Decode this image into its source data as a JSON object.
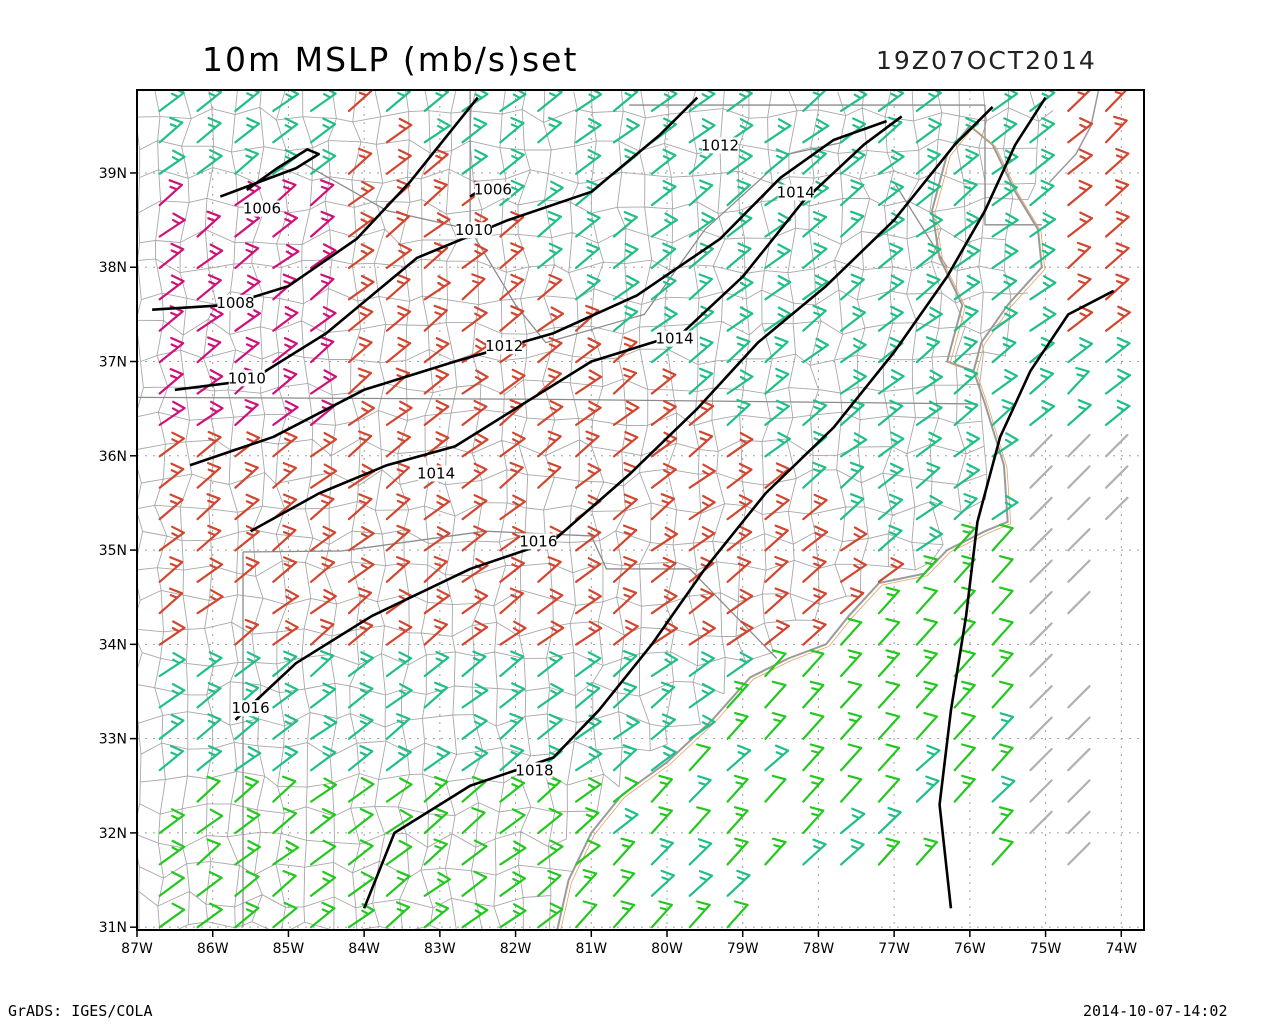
{
  "header": {
    "title": "10m MSLP (mb/s)set",
    "valid_time": "19Z07OCT2014"
  },
  "footer": {
    "credit": "GrADS: IGES/COLA",
    "timestamp": "2014-10-07-14:02"
  },
  "map": {
    "lon_range": [
      -87,
      -73.7
    ],
    "lat_range": [
      30.97,
      39.88
    ],
    "lon_ticks": [
      {
        "value": -87,
        "label": "87W"
      },
      {
        "value": -86,
        "label": "86W"
      },
      {
        "value": -85,
        "label": "85W"
      },
      {
        "value": -84,
        "label": "84W"
      },
      {
        "value": -83,
        "label": "83W"
      },
      {
        "value": -82,
        "label": "82W"
      },
      {
        "value": -81,
        "label": "81W"
      },
      {
        "value": -80,
        "label": "80W"
      },
      {
        "value": -79,
        "label": "79W"
      },
      {
        "value": -78,
        "label": "78W"
      },
      {
        "value": -77,
        "label": "77W"
      },
      {
        "value": -76,
        "label": "76W"
      },
      {
        "value": -75,
        "label": "75W"
      },
      {
        "value": -74,
        "label": "74W"
      }
    ],
    "lat_ticks": [
      {
        "value": 31,
        "label": "31N"
      },
      {
        "value": 32,
        "label": "32N"
      },
      {
        "value": 33,
        "label": "33N"
      },
      {
        "value": 34,
        "label": "34N"
      },
      {
        "value": 35,
        "label": "35N"
      },
      {
        "value": 36,
        "label": "36N"
      },
      {
        "value": 37,
        "label": "37N"
      },
      {
        "value": 38,
        "label": "38N"
      },
      {
        "value": 39,
        "label": "39N"
      }
    ],
    "colors": {
      "frame": "#000000",
      "grid": "#a0a0a0",
      "counties": "#a8a8a8",
      "isobar": "#000000",
      "wind_magenta": "#d0107a",
      "wind_red": "#d2452e",
      "wind_teal": "#1fbf86",
      "wind_green": "#22c81e",
      "wind_gray": "#b0b0b0"
    },
    "isobars": [
      {
        "label": "1006",
        "label_at": [
          -85.35,
          38.58
        ],
        "points": [
          [
            -85.9,
            38.75
          ],
          [
            -85.4,
            38.9
          ],
          [
            -84.9,
            39.05
          ],
          [
            -84.6,
            39.2
          ],
          [
            -84.75,
            39.25
          ],
          [
            -85.15,
            39.05
          ],
          [
            -85.55,
            38.82
          ]
        ]
      },
      {
        "label": "1006",
        "label_at": [
          -82.3,
          38.78
        ],
        "points": [
          [
            -82.6,
            38.75
          ],
          [
            -82.3,
            38.9
          ]
        ]
      },
      {
        "label": "1008",
        "label_at": [
          -85.7,
          37.58
        ],
        "points": [
          [
            -86.8,
            37.55
          ],
          [
            -85.8,
            37.6
          ],
          [
            -85.0,
            37.8
          ],
          [
            -84.1,
            38.3
          ],
          [
            -83.4,
            38.9
          ],
          [
            -82.8,
            39.5
          ],
          [
            -82.5,
            39.8
          ]
        ]
      },
      {
        "label": "1010",
        "label_at": [
          -82.55,
          38.35
        ],
        "points": [
          [
            -86.5,
            36.7
          ],
          [
            -85.5,
            36.8
          ],
          [
            -84.5,
            37.3
          ],
          [
            -83.3,
            38.1
          ],
          [
            -82.1,
            38.5
          ],
          [
            -81.0,
            38.8
          ],
          [
            -80.1,
            39.4
          ],
          [
            -79.6,
            39.8
          ]
        ]
      },
      {
        "label": "1010",
        "label_at": [
          -85.55,
          36.78
        ],
        "points": []
      },
      {
        "label": "1012",
        "label_at": [
          -82.15,
          37.12
        ],
        "points": [
          [
            -86.3,
            35.9
          ],
          [
            -85.2,
            36.2
          ],
          [
            -84.0,
            36.7
          ],
          [
            -82.8,
            37.0
          ],
          [
            -81.5,
            37.3
          ],
          [
            -80.4,
            37.7
          ],
          [
            -79.3,
            38.3
          ],
          [
            -78.5,
            38.95
          ],
          [
            -77.8,
            39.35
          ],
          [
            -77.1,
            39.55
          ]
        ]
      },
      {
        "label": "1012",
        "label_at": [
          -79.3,
          39.25
        ],
        "points": []
      },
      {
        "label": "1014",
        "label_at": [
          -83.05,
          35.77
        ],
        "points": [
          [
            -85.5,
            35.2
          ],
          [
            -84.6,
            35.6
          ],
          [
            -83.7,
            35.9
          ],
          [
            -82.8,
            36.1
          ],
          [
            -82.0,
            36.5
          ],
          [
            -81.0,
            37.0
          ],
          [
            -79.8,
            37.3
          ],
          [
            -79.0,
            37.9
          ],
          [
            -78.2,
            38.7
          ],
          [
            -77.4,
            39.3
          ],
          [
            -76.9,
            39.6
          ]
        ]
      },
      {
        "label": "1014",
        "label_at": [
          -79.9,
          37.2
        ],
        "points": []
      },
      {
        "label": "1014",
        "label_at": [
          -78.3,
          38.75
        ],
        "points": []
      },
      {
        "label": "1016",
        "label_at": [
          -85.5,
          33.28
        ],
        "points": [
          [
            -85.7,
            33.2
          ],
          [
            -84.9,
            33.8
          ],
          [
            -83.9,
            34.3
          ],
          [
            -82.6,
            34.8
          ],
          [
            -81.5,
            35.1
          ],
          [
            -80.5,
            35.8
          ],
          [
            -79.6,
            36.5
          ],
          [
            -78.8,
            37.2
          ],
          [
            -77.9,
            37.8
          ],
          [
            -77.0,
            38.5
          ],
          [
            -76.2,
            39.3
          ],
          [
            -75.7,
            39.7
          ]
        ]
      },
      {
        "label": "1016",
        "label_at": [
          -81.7,
          35.05
        ],
        "points": []
      },
      {
        "label": "1018",
        "label_at": [
          -81.75,
          32.62
        ],
        "points": [
          [
            -84.0,
            31.2
          ],
          [
            -83.6,
            32.0
          ],
          [
            -82.6,
            32.5
          ],
          [
            -81.5,
            32.8
          ],
          [
            -80.9,
            33.3
          ],
          [
            -80.2,
            34.0
          ],
          [
            -79.5,
            34.8
          ],
          [
            -78.7,
            35.6
          ],
          [
            -77.8,
            36.3
          ],
          [
            -77.0,
            37.1
          ],
          [
            -76.3,
            37.9
          ],
          [
            -75.8,
            38.6
          ],
          [
            -75.4,
            39.3
          ],
          [
            -75.0,
            39.8
          ]
        ]
      },
      {
        "label": "",
        "label_at": [
          0,
          0
        ],
        "points": [
          [
            -76.25,
            31.2
          ],
          [
            -76.4,
            32.3
          ],
          [
            -76.25,
            33.3
          ],
          [
            -76.05,
            34.3
          ],
          [
            -75.9,
            35.3
          ],
          [
            -75.6,
            36.2
          ],
          [
            -75.2,
            36.9
          ],
          [
            -74.7,
            37.5
          ],
          [
            -74.1,
            37.75
          ]
        ]
      }
    ]
  }
}
